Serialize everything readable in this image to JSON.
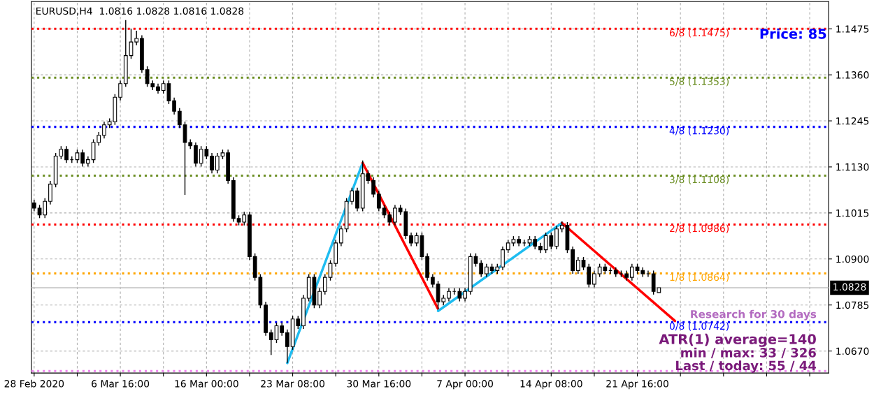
{
  "chart_data": {
    "type": "candlestick",
    "title": "EURUSD,H4  1.0816 1.0828 1.0816 1.0828",
    "categories": [
      "28 Feb 2020",
      null,
      null,
      null,
      null,
      null,
      null,
      null,
      null,
      null,
      null,
      null,
      null,
      null,
      null,
      null,
      "6 Mar 16:00",
      null,
      null,
      null,
      null,
      null,
      null,
      null,
      null,
      null,
      null,
      null,
      null,
      null,
      null,
      null,
      "16 Mar 00:00",
      null,
      null,
      null,
      null,
      null,
      null,
      null,
      null,
      null,
      null,
      null,
      null,
      null,
      null,
      null,
      "23 Mar 08:00",
      null,
      null,
      null,
      null,
      null,
      null,
      null,
      null,
      null,
      null,
      null,
      null,
      null,
      null,
      null,
      "30 Mar 16:00",
      null,
      null,
      null,
      null,
      null,
      null,
      null,
      null,
      null,
      null,
      null,
      null,
      null,
      null,
      null,
      "7 Apr 00:00",
      null,
      null,
      null,
      null,
      null,
      null,
      null,
      null,
      null,
      null,
      null,
      null,
      null,
      null,
      null,
      "14 Apr 08:00",
      null,
      null,
      null,
      null,
      null,
      null,
      null,
      null,
      null,
      null,
      null,
      null,
      null,
      null,
      null,
      "21 Apr 16:00",
      null,
      null,
      null,
      null,
      null,
      null,
      null,
      null,
      null,
      null,
      null,
      null,
      null,
      null,
      null,
      null,
      null,
      null,
      null,
      null,
      null,
      null,
      null,
      null,
      null,
      null,
      null,
      null,
      null,
      null,
      null,
      null,
      null,
      null,
      null
    ],
    "ohlc": [
      [
        1.104,
        1.1048,
        1.1019,
        1.1027
      ],
      [
        1.1027,
        1.1035,
        1.1002,
        1.101
      ],
      [
        1.101,
        1.1052,
        1.1002,
        1.1044
      ],
      [
        1.1044,
        1.1095,
        1.1036,
        1.1087
      ],
      [
        1.1087,
        1.1165,
        1.1079,
        1.1157
      ],
      [
        1.1157,
        1.1182,
        1.1149,
        1.1174
      ],
      [
        1.1174,
        1.1182,
        1.114,
        1.1148
      ],
      [
        1.1148,
        1.1156,
        1.114,
        1.1148
      ],
      [
        1.1148,
        1.1173,
        1.114,
        1.1165
      ],
      [
        1.1165,
        1.1173,
        1.1131,
        1.1139
      ],
      [
        1.1139,
        1.1156,
        1.1131,
        1.1148
      ],
      [
        1.1148,
        1.1199,
        1.114,
        1.1191
      ],
      [
        1.1191,
        1.1217,
        1.1183,
        1.1209
      ],
      [
        1.1209,
        1.1243,
        1.1201,
        1.1235
      ],
      [
        1.1235,
        1.1251,
        1.1227,
        1.1243
      ],
      [
        1.1243,
        1.1312,
        1.1235,
        1.1304
      ],
      [
        1.1304,
        1.1346,
        1.1296,
        1.1338
      ],
      [
        1.1338,
        1.1497,
        1.133,
        1.1408
      ],
      [
        1.1408,
        1.1475,
        1.14,
        1.1442
      ],
      [
        1.1442,
        1.147,
        1.1434,
        1.1451
      ],
      [
        1.1451,
        1.1459,
        1.1365,
        1.1373
      ],
      [
        1.1373,
        1.1381,
        1.133,
        1.1338
      ],
      [
        1.1338,
        1.1346,
        1.1322,
        1.133
      ],
      [
        1.133,
        1.1338,
        1.1313,
        1.1321
      ],
      [
        1.1321,
        1.1346,
        1.1313,
        1.1338
      ],
      [
        1.1338,
        1.1346,
        1.1287,
        1.1295
      ],
      [
        1.1295,
        1.1303,
        1.1261,
        1.1269
      ],
      [
        1.1269,
        1.1277,
        1.1227,
        1.1235
      ],
      [
        1.1235,
        1.1243,
        1.106,
        1.1191
      ],
      [
        1.1191,
        1.1199,
        1.1175,
        1.1183
      ],
      [
        1.1183,
        1.1191,
        1.1131,
        1.1139
      ],
      [
        1.1139,
        1.1182,
        1.1131,
        1.1174
      ],
      [
        1.1174,
        1.1182,
        1.1149,
        1.1157
      ],
      [
        1.1157,
        1.1165,
        1.1114,
        1.1122
      ],
      [
        1.1122,
        1.1165,
        1.1114,
        1.1157
      ],
      [
        1.1157,
        1.1173,
        1.1149,
        1.1165
      ],
      [
        1.1165,
        1.1173,
        1.1088,
        1.1096
      ],
      [
        1.1096,
        1.1104,
        1.0993,
        1.1001
      ],
      [
        1.1001,
        1.1009,
        1.0984,
        1.0992
      ],
      [
        1.0992,
        1.1018,
        1.0984,
        1.101
      ],
      [
        1.101,
        1.1018,
        1.0898,
        1.0906
      ],
      [
        1.0906,
        1.0914,
        1.0846,
        1.0854
      ],
      [
        1.0854,
        1.0862,
        1.0777,
        1.0785
      ],
      [
        1.0785,
        1.0793,
        1.0708,
        1.0716
      ],
      [
        1.0716,
        1.0724,
        1.066,
        1.0698
      ],
      [
        1.0698,
        1.0741,
        1.069,
        1.0733
      ],
      [
        1.0733,
        1.0741,
        1.0708,
        1.0716
      ],
      [
        1.0716,
        1.0724,
        1.064,
        1.0681
      ],
      [
        1.0681,
        1.0758,
        1.0673,
        1.075
      ],
      [
        1.075,
        1.0758,
        1.0725,
        1.0733
      ],
      [
        1.0733,
        1.081,
        1.0725,
        1.0802
      ],
      [
        1.0802,
        1.0862,
        1.0794,
        1.0854
      ],
      [
        1.0854,
        1.0862,
        1.0777,
        1.0785
      ],
      [
        1.0785,
        1.0827,
        1.0777,
        1.0819
      ],
      [
        1.0819,
        1.0862,
        1.0811,
        1.0854
      ],
      [
        1.0854,
        1.0897,
        1.0846,
        1.0889
      ],
      [
        1.0889,
        1.0948,
        1.0881,
        1.094
      ],
      [
        1.094,
        1.0983,
        1.0932,
        1.0975
      ],
      [
        1.0975,
        1.1052,
        1.0967,
        1.1044
      ],
      [
        1.1044,
        1.1078,
        1.1036,
        1.107
      ],
      [
        1.107,
        1.1078,
        1.1019,
        1.1027
      ],
      [
        1.1027,
        1.1146,
        1.1019,
        1.1113
      ],
      [
        1.1113,
        1.1121,
        1.1088,
        1.1096
      ],
      [
        1.1096,
        1.1104,
        1.1054,
        1.1062
      ],
      [
        1.1062,
        1.107,
        1.1019,
        1.1027
      ],
      [
        1.1027,
        1.1035,
        1.1002,
        1.101
      ],
      [
        1.101,
        1.1018,
        1.0984,
        1.0992
      ],
      [
        1.0992,
        1.1035,
        1.0984,
        1.1027
      ],
      [
        1.1027,
        1.1035,
        1.101,
        1.1018
      ],
      [
        1.1018,
        1.1026,
        1.095,
        1.0958
      ],
      [
        1.0958,
        1.0966,
        1.0932,
        1.094
      ],
      [
        1.094,
        1.0966,
        1.0932,
        1.0958
      ],
      [
        1.0958,
        1.0966,
        1.0898,
        1.0906
      ],
      [
        1.0906,
        1.0914,
        1.0846,
        1.0854
      ],
      [
        1.0854,
        1.0862,
        1.0829,
        1.0837
      ],
      [
        1.0837,
        1.0845,
        1.0775,
        1.0793
      ],
      [
        1.0793,
        1.081,
        1.0785,
        1.0802
      ],
      [
        1.0802,
        1.0827,
        1.0794,
        1.0819
      ],
      [
        1.0819,
        1.0827,
        1.0811,
        1.0819
      ],
      [
        1.0819,
        1.0827,
        1.0794,
        1.0802
      ],
      [
        1.0802,
        1.0827,
        1.0794,
        1.0819
      ],
      [
        1.0819,
        1.0914,
        1.0811,
        1.0906
      ],
      [
        1.0906,
        1.0914,
        1.0881,
        1.0889
      ],
      [
        1.0889,
        1.0897,
        1.0855,
        1.0863
      ],
      [
        1.0863,
        1.0888,
        1.0855,
        1.088
      ],
      [
        1.088,
        1.0888,
        1.0863,
        1.0871
      ],
      [
        1.0871,
        1.0888,
        1.0863,
        1.088
      ],
      [
        1.088,
        1.0931,
        1.0872,
        1.0923
      ],
      [
        1.0923,
        1.0948,
        1.0915,
        1.094
      ],
      [
        1.094,
        1.0957,
        1.0932,
        1.0949
      ],
      [
        1.0949,
        1.0957,
        1.0932,
        1.094
      ],
      [
        1.094,
        1.0948,
        1.0932,
        1.094
      ],
      [
        1.094,
        1.0957,
        1.0932,
        1.0949
      ],
      [
        1.0949,
        1.0957,
        1.0924,
        1.0932
      ],
      [
        1.0932,
        1.094,
        1.0915,
        1.0923
      ],
      [
        1.0923,
        1.0966,
        1.0915,
        1.0958
      ],
      [
        1.0958,
        1.0966,
        1.0924,
        1.0932
      ],
      [
        1.0932,
        1.0983,
        1.0924,
        1.0975
      ],
      [
        1.0975,
        1.0994,
        1.0967,
        1.0984
      ],
      [
        1.0984,
        1.0992,
        1.0915,
        1.0923
      ],
      [
        1.0923,
        1.0931,
        1.0863,
        1.0871
      ],
      [
        1.0871,
        1.0905,
        1.0863,
        1.0897
      ],
      [
        1.0897,
        1.0905,
        1.0872,
        1.088
      ],
      [
        1.088,
        1.0888,
        1.0829,
        1.0837
      ],
      [
        1.0837,
        1.0871,
        1.0829,
        1.0863
      ],
      [
        1.0863,
        1.0888,
        1.0855,
        1.088
      ],
      [
        1.088,
        1.0888,
        1.0863,
        1.0871
      ],
      [
        1.0871,
        1.0879,
        1.0863,
        1.0871
      ],
      [
        1.0871,
        1.0879,
        1.0855,
        1.0863
      ],
      [
        1.0863,
        1.0871,
        1.0855,
        1.0863
      ],
      [
        1.0863,
        1.0871,
        1.0846,
        1.0854
      ],
      [
        1.0854,
        1.0888,
        1.0846,
        1.088
      ],
      [
        1.088,
        1.0888,
        1.0863,
        1.0871
      ],
      [
        1.0871,
        1.0879,
        1.0855,
        1.0863
      ],
      [
        1.0863,
        1.0871,
        1.0855,
        1.0863
      ],
      [
        1.0863,
        1.0871,
        1.0811,
        1.0819
      ],
      [
        1.0816,
        1.0828,
        1.0816,
        1.0828
      ],
      null,
      null,
      null,
      null,
      null,
      null,
      null,
      null,
      null,
      null,
      null,
      null,
      null,
      null,
      null,
      null,
      null,
      null,
      null,
      null,
      null,
      null,
      null,
      null,
      null,
      null,
      null,
      null,
      null,
      null,
      null
    ],
    "series": [
      {
        "type": "line",
        "color": "#1ebcf0",
        "values": [
          null,
          null,
          null,
          null,
          null,
          null,
          null,
          null,
          null,
          null,
          null,
          null,
          null,
          null,
          null,
          null,
          null,
          null,
          null,
          null,
          null,
          null,
          null,
          null,
          null,
          null,
          null,
          null,
          null,
          null,
          null,
          null,
          null,
          null,
          null,
          null,
          null,
          null,
          null,
          null,
          null,
          null,
          null,
          null,
          null,
          null,
          null,
          1.064,
          null,
          null,
          null,
          null,
          null,
          null,
          null,
          null,
          null,
          null,
          null,
          null,
          null,
          1.114,
          null,
          null,
          null,
          null,
          null,
          null,
          null,
          null,
          null,
          null,
          null,
          null,
          null,
          null,
          null,
          null,
          null,
          null,
          null,
          null,
          null,
          null,
          null,
          null,
          null,
          null,
          null,
          null,
          null,
          null,
          null,
          null,
          null,
          null,
          null,
          null,
          null,
          null,
          null,
          null,
          null,
          null,
          null,
          null,
          null,
          null,
          null,
          null,
          null,
          null,
          null,
          null,
          null,
          null,
          null,
          null,
          null,
          null,
          null,
          null,
          null,
          null,
          null,
          null,
          null,
          null,
          null,
          null,
          null,
          null,
          null,
          null,
          null,
          null,
          null,
          null,
          null,
          null,
          null,
          null,
          null,
          null,
          null,
          null,
          null,
          null
        ]
      },
      {
        "type": "line",
        "color": "#ff0000",
        "values": [
          null,
          null,
          null,
          null,
          null,
          null,
          null,
          null,
          null,
          null,
          null,
          null,
          null,
          null,
          null,
          null,
          null,
          null,
          null,
          null,
          null,
          null,
          null,
          null,
          null,
          null,
          null,
          null,
          null,
          null,
          null,
          null,
          null,
          null,
          null,
          null,
          null,
          null,
          null,
          null,
          null,
          null,
          null,
          null,
          null,
          null,
          null,
          null,
          null,
          null,
          null,
          null,
          null,
          null,
          null,
          null,
          null,
          null,
          null,
          null,
          null,
          1.114,
          null,
          null,
          null,
          null,
          null,
          null,
          null,
          null,
          null,
          null,
          null,
          null,
          null,
          1.0775,
          null,
          null,
          null,
          null,
          null,
          null,
          null,
          null,
          null,
          null,
          null,
          null,
          null,
          null,
          null,
          null,
          null,
          null,
          null,
          null,
          null,
          null,
          null,
          null,
          null,
          null,
          null,
          null,
          null,
          null,
          null,
          null,
          null,
          null,
          null,
          null,
          null,
          null,
          null,
          null,
          null,
          null,
          null,
          null,
          null,
          null,
          null,
          null,
          null,
          null,
          null,
          null,
          null,
          null,
          null,
          null,
          null,
          null,
          null,
          null,
          null,
          null,
          null,
          null,
          null,
          null,
          null,
          null,
          null,
          null,
          null,
          null
        ]
      },
      {
        "type": "line",
        "color": "#1ebcf0",
        "values": [
          null,
          null,
          null,
          null,
          null,
          null,
          null,
          null,
          null,
          null,
          null,
          null,
          null,
          null,
          null,
          null,
          null,
          null,
          null,
          null,
          null,
          null,
          null,
          null,
          null,
          null,
          null,
          null,
          null,
          null,
          null,
          null,
          null,
          null,
          null,
          null,
          null,
          null,
          null,
          null,
          null,
          null,
          null,
          null,
          null,
          null,
          null,
          null,
          null,
          null,
          null,
          null,
          null,
          null,
          null,
          null,
          null,
          null,
          null,
          null,
          null,
          null,
          null,
          null,
          null,
          null,
          null,
          null,
          null,
          null,
          null,
          null,
          null,
          null,
          null,
          1.077,
          null,
          null,
          null,
          null,
          null,
          null,
          null,
          null,
          null,
          null,
          null,
          null,
          null,
          null,
          null,
          null,
          null,
          null,
          null,
          null,
          null,
          null,
          1.099,
          null,
          null,
          null,
          null,
          null,
          null,
          null,
          null,
          null,
          null,
          null,
          null,
          null,
          null,
          null,
          null,
          null,
          null,
          null,
          null,
          null,
          null,
          null,
          null,
          null,
          null,
          null,
          null,
          null,
          null,
          null,
          null,
          null,
          null,
          null,
          null,
          null,
          null,
          null,
          null,
          null,
          null,
          null,
          null,
          null,
          null,
          null,
          null,
          null
        ]
      },
      {
        "type": "line",
        "color": "#ff0000",
        "values": [
          null,
          null,
          null,
          null,
          null,
          null,
          null,
          null,
          null,
          null,
          null,
          null,
          null,
          null,
          null,
          null,
          null,
          null,
          null,
          null,
          null,
          null,
          null,
          null,
          null,
          null,
          null,
          null,
          null,
          null,
          null,
          null,
          null,
          null,
          null,
          null,
          null,
          null,
          null,
          null,
          null,
          null,
          null,
          null,
          null,
          null,
          null,
          null,
          null,
          null,
          null,
          null,
          null,
          null,
          null,
          null,
          null,
          null,
          null,
          null,
          null,
          null,
          null,
          null,
          null,
          null,
          null,
          null,
          null,
          null,
          null,
          null,
          null,
          null,
          null,
          null,
          null,
          null,
          null,
          null,
          null,
          null,
          null,
          null,
          null,
          null,
          null,
          null,
          null,
          null,
          null,
          null,
          null,
          null,
          null,
          null,
          null,
          null,
          1.099,
          null,
          null,
          null,
          null,
          null,
          null,
          null,
          null,
          null,
          null,
          null,
          null,
          null,
          null,
          null,
          null,
          null,
          null,
          null,
          null,
          1.0745,
          null,
          null,
          null,
          null,
          null,
          null,
          null,
          null,
          null,
          null,
          null,
          null,
          null,
          null,
          null,
          null,
          null,
          null,
          null,
          null,
          null,
          null,
          null,
          null,
          null,
          null,
          null,
          null
        ]
      }
    ],
    "ylim": [
      1.0615,
      1.1543
    ],
    "yticks": [
      {
        "value": 1.067,
        "label": "1.0670"
      },
      1.0785,
      {
        "value": 1.09,
        "label": "1.0900"
      },
      1.1015,
      {
        "value": 1.113,
        "label": "1.1130"
      },
      1.1245,
      {
        "value": 1.136,
        "label": "1.1360"
      },
      1.1475
    ],
    "ref_lines": [
      {
        "axis": "y",
        "value": 1.1475,
        "label": "6/8 (1.1475)",
        "color": "#ff0000",
        "line_style": "dotted"
      },
      {
        "axis": "y",
        "value": 1.1353,
        "label": "5/8 (1.1353)",
        "color": "#6b8e23",
        "line_style": "dotted"
      },
      {
        "axis": "y",
        "value": 1.123,
        "label": "4/8 (1.1230)",
        "color": "#0000ff",
        "line_style": "dotted"
      },
      {
        "axis": "y",
        "value": 1.1108,
        "label": "3/8 (1.1108)",
        "color": "#6b8e23",
        "line_style": "dotted"
      },
      {
        "axis": "y",
        "value": 1.0986,
        "label": "2/8 (1.0986)",
        "color": "#ff0000",
        "line_style": "dotted"
      },
      {
        "axis": "y",
        "value": 1.0864,
        "label": "1/8 (1.0864)",
        "color": "#ffa500",
        "line_style": "dotted"
      },
      {
        "axis": "y",
        "value": 1.0742,
        "label": "0/8 (1.0742)",
        "color": "#0000ff",
        "line_style": "dotted"
      },
      {
        "axis": "y",
        "value": 1.062,
        "color": "#ee82ee",
        "line_style": "dotted"
      },
      {
        "axis": "y",
        "value": 1.0828,
        "label": "1.0828",
        "color": "#c0c0c0",
        "line_style": "solid"
      }
    ],
    "annotations": [
      "Price: 85",
      "Research for 30 days",
      "ATR(1) average=140",
      "min / max: 33 / 326",
      "Last / today: 55 / 44"
    ],
    "grid": true,
    "legend": false
  }
}
